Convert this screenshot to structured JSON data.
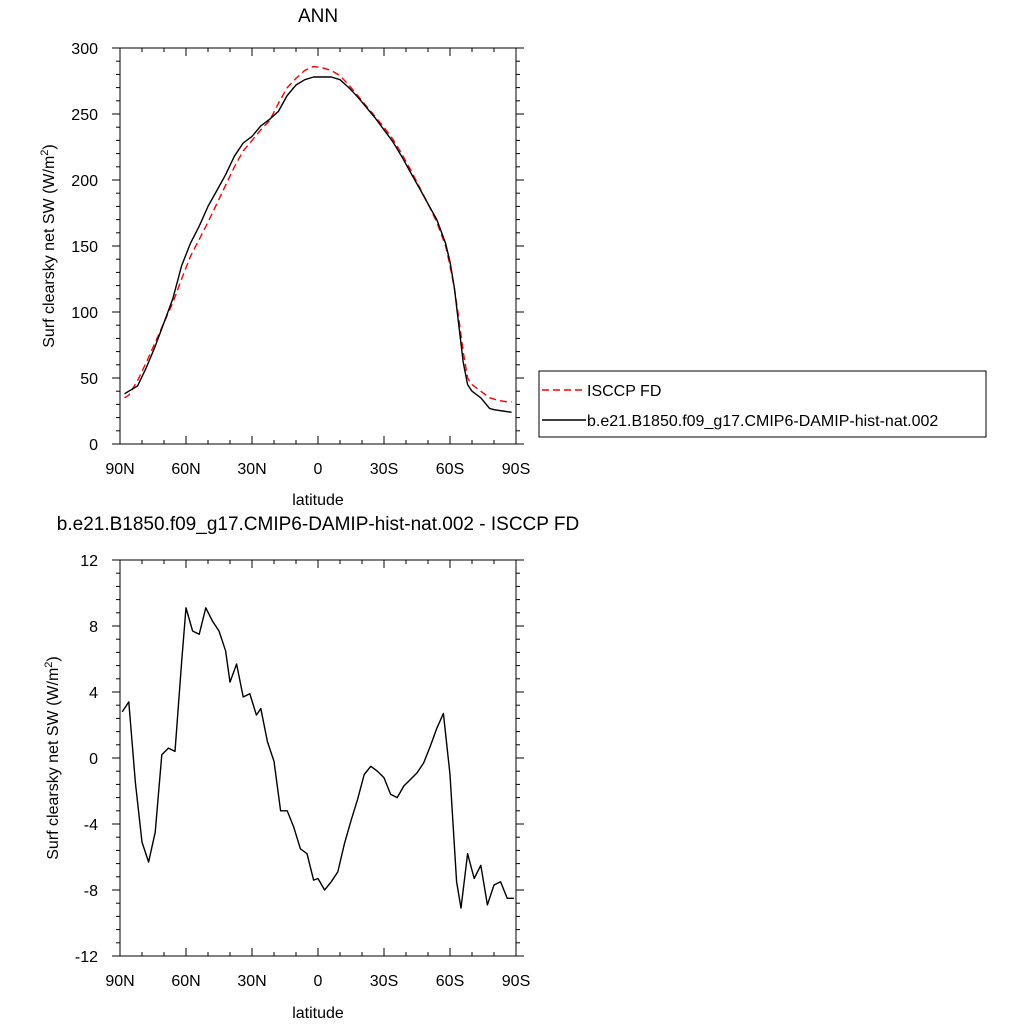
{
  "chart_data": [
    {
      "type": "line",
      "title": "ANN",
      "xlabel": "latitude",
      "ylabel": "Surf clearsky net SW (W/m",
      "ylabel_sup": "2",
      "ylabel_close": ")",
      "xlim": [
        90,
        -90
      ],
      "ylim": [
        0,
        300
      ],
      "x_ticks": [
        90,
        60,
        30,
        0,
        -30,
        -60,
        -90
      ],
      "x_tick_labels": [
        "90N",
        "60N",
        "30N",
        "0",
        "30S",
        "60S",
        "90S"
      ],
      "y_ticks": [
        0,
        50,
        100,
        150,
        200,
        250,
        300
      ],
      "y_tick_labels": [
        "0",
        "50",
        "100",
        "150",
        "200",
        "250",
        "300"
      ],
      "legend_position": "right",
      "series": [
        {
          "name": "ISCCP FD",
          "color": "#ff0000",
          "dash": "dashed",
          "x": [
            88,
            86,
            82,
            78,
            74,
            70,
            66,
            62,
            58,
            54,
            50,
            46,
            42,
            38,
            34,
            30,
            26,
            22,
            18,
            14,
            10,
            6,
            2,
            -2,
            -6,
            -10,
            -14,
            -18,
            -22,
            -26,
            -30,
            -34,
            -38,
            -42,
            -46,
            -50,
            -54,
            -58,
            -60,
            -62,
            -64,
            -66,
            -68,
            -70,
            -74,
            -78,
            -82,
            -86,
            -88
          ],
          "y": [
            35,
            37,
            48,
            62,
            77,
            92,
            107,
            125,
            142,
            155,
            168,
            182,
            196,
            210,
            222,
            230,
            238,
            245,
            258,
            270,
            277,
            283,
            286,
            285,
            283,
            279,
            272,
            264,
            256,
            248,
            240,
            231,
            220,
            208,
            195,
            182,
            168,
            150,
            135,
            118,
            95,
            70,
            50,
            45,
            40,
            35,
            33,
            32,
            32
          ]
        },
        {
          "name": "b.e21.B1850.f09_g17.CMIP6-DAMIP-hist-nat.002",
          "color": "#000000",
          "dash": "solid",
          "x": [
            88,
            86,
            82,
            78,
            74,
            70,
            66,
            62,
            58,
            54,
            50,
            46,
            42,
            38,
            34,
            30,
            26,
            22,
            18,
            14,
            10,
            6,
            2,
            -2,
            -6,
            -10,
            -14,
            -18,
            -22,
            -26,
            -30,
            -34,
            -38,
            -42,
            -46,
            -50,
            -54,
            -58,
            -60,
            -62,
            -64,
            -66,
            -68,
            -70,
            -74,
            -78,
            -80,
            -84,
            -88
          ],
          "y": [
            38,
            40,
            44,
            58,
            74,
            92,
            110,
            135,
            152,
            165,
            180,
            192,
            204,
            218,
            228,
            233,
            241,
            246,
            252,
            264,
            272,
            276,
            278,
            278,
            278,
            276,
            270,
            263,
            255,
            247,
            238,
            229,
            218,
            206,
            194,
            182,
            170,
            152,
            138,
            118,
            90,
            62,
            45,
            40,
            35,
            27,
            26,
            25,
            24
          ]
        }
      ]
    },
    {
      "type": "line",
      "title": "b.e21.B1850.f09_g17.CMIP6-DAMIP-hist-nat.002 - ISCCP FD",
      "xlabel": "latitude",
      "ylabel": "Surf clearsky net SW (W/m",
      "ylabel_sup": "2",
      "ylabel_close": ")",
      "xlim": [
        90,
        -90
      ],
      "ylim": [
        -12,
        12
      ],
      "x_ticks": [
        90,
        60,
        30,
        0,
        -30,
        -60,
        -90
      ],
      "x_tick_labels": [
        "90N",
        "60N",
        "30N",
        "0",
        "30S",
        "60S",
        "90S"
      ],
      "y_ticks": [
        -12,
        -8,
        -4,
        0,
        4,
        8,
        12
      ],
      "y_tick_labels": [
        "-12",
        "-8",
        "-4",
        "0",
        "4",
        "8",
        "12"
      ],
      "series": [
        {
          "color": "#000000",
          "dash": "solid",
          "x": [
            89,
            86,
            83,
            80,
            77,
            74,
            71,
            68,
            65,
            62,
            60,
            57,
            54,
            51,
            48,
            45,
            42,
            40,
            37,
            34,
            31,
            28,
            26,
            23,
            20,
            17,
            14,
            11,
            8,
            5,
            2,
            0,
            -3,
            -6,
            -9,
            -12,
            -15,
            -18,
            -21,
            -24,
            -27,
            -30,
            -33,
            -36,
            -39,
            -42,
            -45,
            -48,
            -51,
            -54,
            -57,
            -60,
            -63,
            -65,
            -68,
            -71,
            -74,
            -77,
            -80,
            -83,
            -86,
            -89
          ],
          "y": [
            2.8,
            3.4,
            -1.5,
            -5.1,
            -6.3,
            -4.5,
            0.2,
            0.6,
            0.4,
            5.8,
            9.1,
            7.7,
            7.5,
            9.1,
            8.3,
            7.7,
            6.5,
            4.6,
            5.7,
            3.7,
            3.9,
            2.6,
            3.0,
            1.0,
            -0.2,
            -3.2,
            -3.2,
            -4.2,
            -5.5,
            -5.8,
            -7.4,
            -7.3,
            -8.0,
            -7.5,
            -6.9,
            -5.2,
            -3.8,
            -2.5,
            -1.0,
            -0.5,
            -0.8,
            -1.2,
            -2.2,
            -2.4,
            -1.7,
            -1.3,
            -0.9,
            -0.3,
            0.7,
            1.8,
            2.7,
            -1.0,
            -7.5,
            -9.1,
            -5.8,
            -7.3,
            -6.5,
            -8.9,
            -7.7,
            -7.5,
            -8.5,
            -8.5
          ]
        }
      ]
    }
  ]
}
